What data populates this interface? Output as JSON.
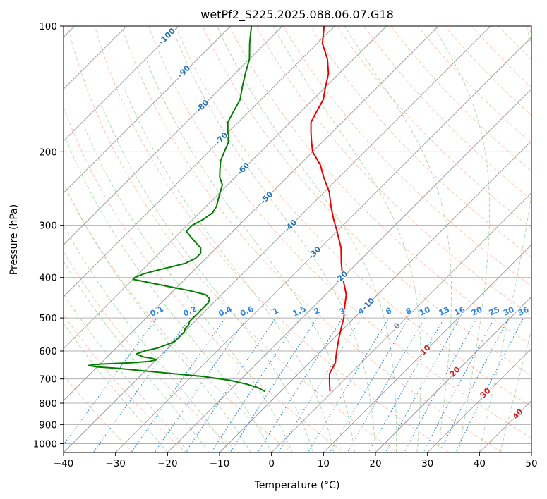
{
  "chart_data": {
    "type": "line",
    "title": "wetPf2_S225.2025.088.06.07.G18",
    "xlabel": "Temperature (°C)",
    "ylabel": "Pressure (hPa)",
    "xlim": [
      -40,
      50
    ],
    "ylim": [
      1050,
      100
    ],
    "y_scale": "log",
    "x_ticks": [
      "−40",
      "−30",
      "−20",
      "−10",
      "0",
      "10",
      "20",
      "30",
      "40",
      "50"
    ],
    "y_ticks": [
      "100",
      "200",
      "300",
      "400",
      "500",
      "600",
      "700",
      "800",
      "900",
      "1000"
    ],
    "x_tick_values": [
      -40,
      -30,
      -20,
      -10,
      0,
      10,
      20,
      30,
      40,
      50
    ],
    "y_tick_values": [
      100,
      200,
      300,
      400,
      500,
      600,
      700,
      800,
      900,
      1000
    ],
    "grid": true,
    "skew": "skew-T log-p",
    "colors": {
      "temperature": "#ee0000",
      "dewpoint": "#007f00",
      "isotherm": "#a0a0a0",
      "dry_adiabat": "#ff9f80",
      "moist_adiabat": "#70c070",
      "mixing_ratio": "#2e85e0",
      "isotherm_label": "#2a73b0",
      "moist_label": "#cc2222",
      "lcl_label": "#808080"
    },
    "series": [
      {
        "name": "",
        "role": "temperature",
        "pressure": [
          750,
          720,
          700,
          680,
          660,
          640,
          620,
          600,
          560,
          520,
          500,
          470,
          440,
          400,
          370,
          340,
          310,
          290,
          270,
          250,
          230,
          215,
          200,
          190,
          180,
          170,
          160,
          150,
          140,
          130,
          120,
          110,
          100
        ],
        "temperature": [
          -0.5,
          -2,
          -3,
          -4,
          -4.5,
          -5,
          -6,
          -7,
          -9,
          -11,
          -12,
          -14,
          -16,
          -20,
          -23,
          -26,
          -30,
          -33,
          -36,
          -39,
          -43,
          -46,
          -50,
          -52,
          -54,
          -56,
          -57,
          -58,
          -60,
          -62,
          -65,
          -69,
          -72
        ]
      },
      {
        "name": "",
        "role": "dewpoint",
        "pressure": [
          750,
          735,
          720,
          705,
          690,
          680,
          670,
          660,
          655,
          650,
          645,
          640,
          635,
          630,
          625,
          620,
          610,
          600,
          590,
          580,
          570,
          560,
          550,
          540,
          530,
          520,
          510,
          500,
          490,
          480,
          470,
          460,
          450,
          440,
          430,
          420,
          410,
          404,
          400,
          392,
          384,
          370,
          360,
          350,
          340,
          330,
          320,
          310,
          300,
          290,
          280,
          270,
          260,
          250,
          240,
          230,
          220,
          210,
          200,
          190,
          180,
          170,
          160,
          150,
          140,
          130,
          120,
          110,
          100
        ],
        "temperature": [
          -13,
          -15,
          -18,
          -22,
          -28,
          -34,
          -40,
          -46,
          -50,
          -52,
          -50,
          -44,
          -41,
          -40,
          -41,
          -43,
          -45,
          -44,
          -42,
          -41,
          -40,
          -40,
          -40,
          -40,
          -40.5,
          -40.5,
          -41,
          -41,
          -41,
          -41,
          -41,
          -41,
          -41.5,
          -43,
          -47,
          -52,
          -57,
          -60,
          -60,
          -59,
          -57,
          -53,
          -52,
          -52,
          -53,
          -55,
          -57,
          -59,
          -59,
          -58,
          -57.5,
          -58,
          -59,
          -60,
          -61,
          -63,
          -64.5,
          -66,
          -67,
          -68,
          -70,
          -72,
          -73,
          -74,
          -76,
          -78,
          -80,
          -83,
          -86
        ]
      }
    ],
    "isotherm_labels": [
      "-100",
      "-90",
      "-80",
      "-70",
      "-60",
      "-50",
      "-40",
      "-30",
      "-20",
      "-10"
    ],
    "isotherm_label_values": [
      -100,
      -90,
      -80,
      -70,
      -60,
      -50,
      -40,
      -30,
      -20,
      -10
    ],
    "mixing_ratio_labels": [
      "0.1",
      "0.2",
      "0.4",
      "0.6",
      "1",
      "1.5",
      "2",
      "3",
      "4",
      "6",
      "8",
      "10",
      "13",
      "16",
      "20",
      "25",
      "30",
      "36"
    ],
    "mixing_ratio_values": [
      0.1,
      0.2,
      0.4,
      0.6,
      1,
      1.5,
      2,
      3,
      4,
      6,
      8,
      10,
      13,
      16,
      20,
      25,
      30,
      36
    ],
    "moist_adiabat_labels": [
      "0",
      "10",
      "20",
      "30",
      "40"
    ],
    "moist_adiabat_values": [
      0,
      10,
      20,
      30,
      40
    ]
  }
}
